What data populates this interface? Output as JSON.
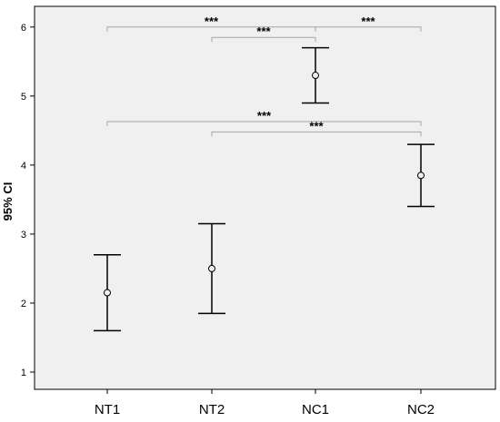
{
  "chart_data": {
    "type": "errorbar",
    "categories": [
      "NT1",
      "NT2",
      "NC1",
      "NC2"
    ],
    "points": [
      {
        "category": "NT1",
        "mean": 2.15,
        "lower": 1.6,
        "upper": 2.7
      },
      {
        "category": "NT2",
        "mean": 2.5,
        "lower": 1.85,
        "upper": 3.15
      },
      {
        "category": "NC1",
        "mean": 5.3,
        "lower": 4.9,
        "upper": 5.7
      },
      {
        "category": "NC2",
        "mean": 3.85,
        "lower": 3.4,
        "upper": 4.3
      }
    ],
    "ylabel": "95% CI",
    "xlabel": "",
    "yticks": [
      1,
      2,
      3,
      4,
      5,
      6
    ],
    "ylim": [
      0.75,
      6.3
    ],
    "grid": false,
    "comparisons": [
      {
        "from": "NT1",
        "to": "NC1",
        "label": "***",
        "level": 6.0
      },
      {
        "from": "NC1",
        "to": "NC2",
        "label": "***",
        "level": 6.0
      },
      {
        "from": "NT2",
        "to": "NC1",
        "label": "***",
        "level": 5.85
      },
      {
        "from": "NT1",
        "to": "NC2",
        "label": "***",
        "level": 4.63
      },
      {
        "from": "NT2",
        "to": "NC2",
        "label": "***",
        "level": 4.48
      }
    ]
  },
  "colors": {
    "plot_background": "#f0f0f0",
    "plot_border": "#000000",
    "marker": "#000000",
    "bracket": "#a6a6a6"
  }
}
